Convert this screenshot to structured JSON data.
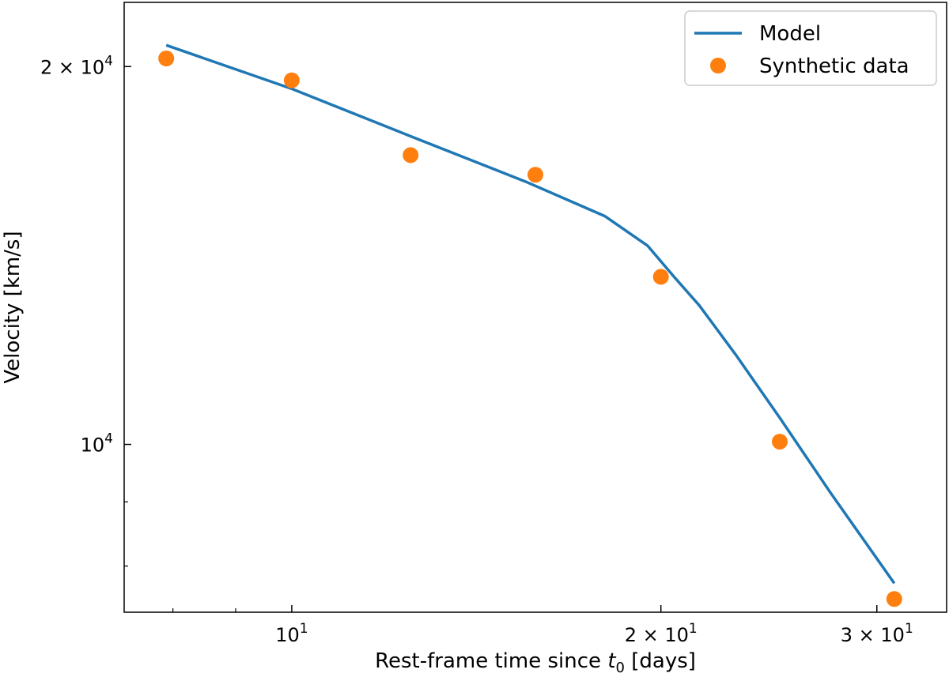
{
  "chart_data": {
    "type": "line",
    "xscale": "log",
    "yscale": "log",
    "xlim": [
      7.3,
      34.2
    ],
    "ylim": [
      7350,
      22500
    ],
    "xlabel": "Rest-frame time since t0 [days]",
    "xlabel_parts": {
      "prefix": "Rest-frame time since ",
      "var": "t",
      "sub": "0",
      "suffix": " [days]"
    },
    "ylabel": "Velocity [km/s]",
    "xticks": [
      {
        "value": 10,
        "base": "10",
        "exp": "1",
        "coef": ""
      },
      {
        "value": 20,
        "base": "10",
        "exp": "1",
        "coef": "2 × "
      },
      {
        "value": 30,
        "base": "10",
        "exp": "1",
        "coef": "3 × "
      }
    ],
    "yticks": [
      {
        "value": 10000,
        "base": "10",
        "exp": "4",
        "coef": ""
      },
      {
        "value": 20000,
        "base": "10",
        "exp": "4",
        "coef": "2 × "
      }
    ],
    "x_minor_ticks": [
      8,
      9,
      40
    ],
    "y_minor_ticks": [
      8000,
      9000
    ],
    "legend_position": "top-right",
    "series": [
      {
        "name": "Model",
        "type": "line",
        "color": "#1f77b4",
        "x": [
          7.9,
          10,
          12.5,
          15.5,
          18.0,
          19.5,
          20.5,
          21.5,
          23.0,
          25.0,
          27.5,
          31.0
        ],
        "y": [
          20800,
          19200,
          17600,
          16200,
          15200,
          14400,
          13600,
          12900,
          11800,
          10500,
          9150,
          7750
        ]
      },
      {
        "name": "Synthetic data",
        "type": "scatter",
        "color": "#ff7f0e",
        "x": [
          7.9,
          10,
          12.5,
          15.8,
          20.0,
          25.0,
          31.0
        ],
        "y": [
          20300,
          19500,
          17000,
          16400,
          13600,
          10050,
          7530
        ]
      }
    ]
  }
}
